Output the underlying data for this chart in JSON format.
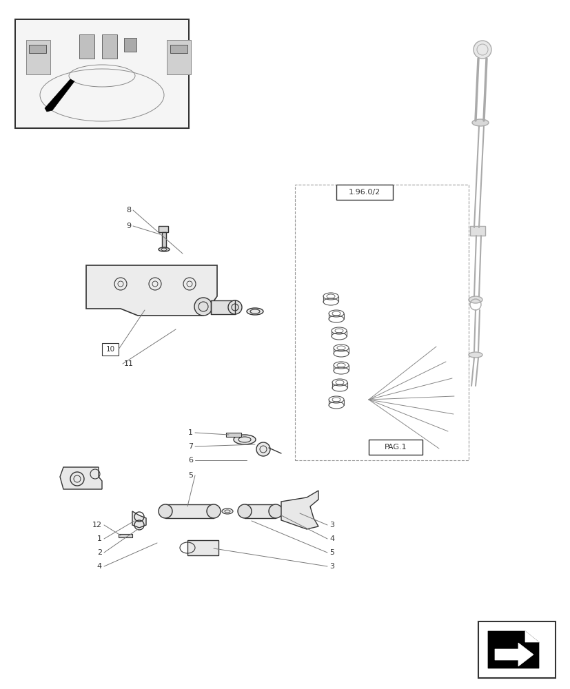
{
  "bg_color": "#ffffff",
  "line_color": "#555555",
  "dark_color": "#333333",
  "light_gray": "#aaaaaa",
  "ref_label_1": "1.96.0/2",
  "ref_label_2": "PAG.1"
}
